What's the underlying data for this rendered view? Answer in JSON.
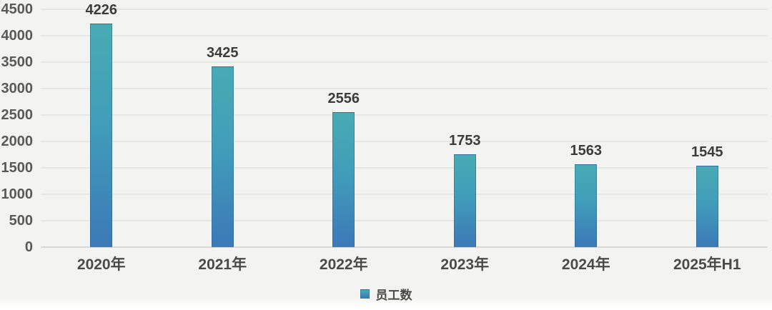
{
  "chart_data": {
    "type": "bar",
    "title": "",
    "categories": [
      "2020年",
      "2021年",
      "2022年",
      "2023年",
      "2024年",
      "2025年H1"
    ],
    "series": [
      {
        "name": "员工数",
        "values": [
          4226,
          3425,
          2556,
          1753,
          1563,
          1545
        ]
      }
    ],
    "data_labels": [
      4226,
      3425,
      2556,
      1753,
      1563,
      1545
    ],
    "xlabel": "",
    "ylabel": "",
    "ylim": [
      0,
      4500
    ],
    "yticks": [
      0,
      500,
      1000,
      1500,
      2000,
      2500,
      3000,
      3500,
      4000,
      4500
    ],
    "grid": true,
    "legend_position": "bottom",
    "legend_entries": [
      "员工数"
    ]
  },
  "colors": {
    "bar_gradient_top": "#48abb3",
    "bar_gradient_bottom": "#3c79b8",
    "background": "#f3f3f1",
    "gridline": "#e6e6e3",
    "axis_line": "#d9d9d6",
    "value_label": "#3c3c3a",
    "axis_tick_label": "#595955"
  }
}
